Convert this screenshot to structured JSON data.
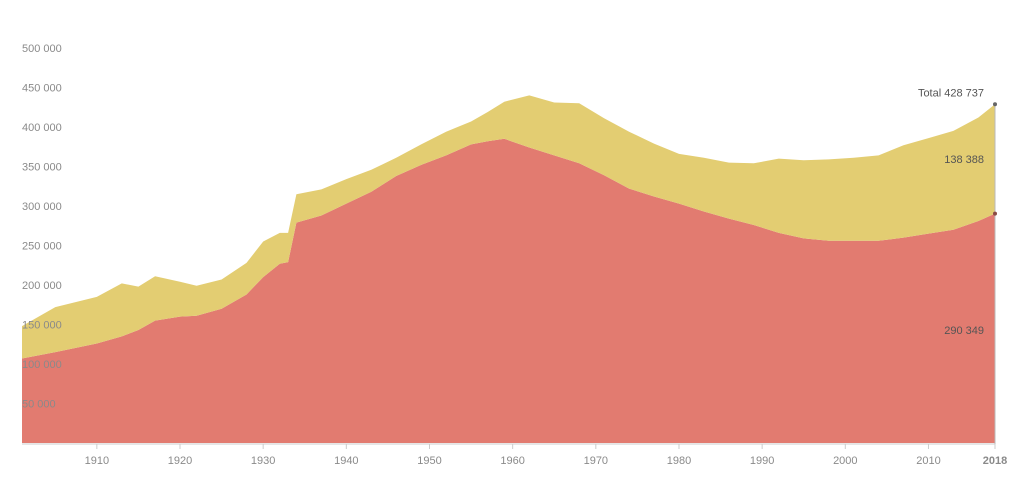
{
  "chart_data": {
    "type": "area",
    "stacked": true,
    "grid": false,
    "ylim": [
      0,
      500000
    ],
    "xlim": [
      1901,
      2018
    ],
    "y_ticks": [
      {
        "value": 50000,
        "label": "50 000"
      },
      {
        "value": 100000,
        "label": "100 000"
      },
      {
        "value": 150000,
        "label": "150 000"
      },
      {
        "value": 200000,
        "label": "200 000"
      },
      {
        "value": 250000,
        "label": "250 000"
      },
      {
        "value": 300000,
        "label": "300 000"
      },
      {
        "value": 350000,
        "label": "350 000"
      },
      {
        "value": 400000,
        "label": "400 000"
      },
      {
        "value": 450000,
        "label": "450 000"
      },
      {
        "value": 500000,
        "label": "500 000"
      }
    ],
    "x_ticks": [
      {
        "value": 1910,
        "label": "1910"
      },
      {
        "value": 1920,
        "label": "1920"
      },
      {
        "value": 1930,
        "label": "1930"
      },
      {
        "value": 1940,
        "label": "1940"
      },
      {
        "value": 1950,
        "label": "1950"
      },
      {
        "value": 1960,
        "label": "1960"
      },
      {
        "value": 1970,
        "label": "1970"
      },
      {
        "value": 1980,
        "label": "1980"
      },
      {
        "value": 1990,
        "label": "1990"
      },
      {
        "value": 2000,
        "label": "2000"
      },
      {
        "value": 2010,
        "label": "2010"
      },
      {
        "value": 2018,
        "label": "2018",
        "emphasis": true
      }
    ],
    "x": [
      1901,
      1905,
      1910,
      1913,
      1915,
      1917,
      1920,
      1922,
      1925,
      1928,
      1930,
      1932,
      1933,
      1934,
      1937,
      1940,
      1943,
      1946,
      1949,
      1952,
      1955,
      1957,
      1959,
      1962,
      1965,
      1968,
      1971,
      1974,
      1977,
      1980,
      1983,
      1986,
      1989,
      1992,
      1995,
      1998,
      2001,
      2004,
      2007,
      2010,
      2013,
      2016,
      2018
    ],
    "series": [
      {
        "color": "#e27b70",
        "values": [
          107000,
          115000,
          126000,
          135000,
          143000,
          155000,
          160000,
          161000,
          170000,
          188000,
          210000,
          227000,
          229000,
          279000,
          288000,
          303000,
          318000,
          338000,
          352000,
          364000,
          378000,
          382000,
          385000,
          374000,
          364000,
          354000,
          339000,
          322000,
          312000,
          303000,
          293000,
          284000,
          276000,
          266000,
          259000,
          256000,
          256000,
          256000,
          260000,
          265000,
          270000,
          281000,
          290349
        ],
        "end_label": "290 349"
      },
      {
        "color": "#e3cd72",
        "values": [
          41000,
          57000,
          59000,
          67000,
          55000,
          56000,
          44000,
          38000,
          37000,
          40000,
          45000,
          39000,
          37000,
          36000,
          33000,
          31000,
          28000,
          23000,
          26000,
          30000,
          29000,
          37000,
          47000,
          66000,
          67000,
          76000,
          72000,
          72000,
          67000,
          63000,
          68000,
          71000,
          78000,
          94000,
          99000,
          103000,
          105000,
          108000,
          117000,
          121000,
          125000,
          131000,
          138388
        ],
        "end_label": "138 388"
      }
    ],
    "total_label": "Total 428 737",
    "axis_color": "#cccccc"
  }
}
